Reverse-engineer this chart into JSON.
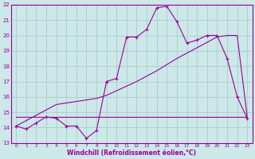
{
  "xlabel": "Windchill (Refroidissement éolien,°C)",
  "bg_color": "#cce8e8",
  "grid_color": "#aacccc",
  "line_color": "#990099",
  "hours": [
    0,
    1,
    2,
    3,
    4,
    5,
    6,
    7,
    8,
    9,
    10,
    11,
    12,
    13,
    14,
    15,
    16,
    17,
    18,
    19,
    20,
    21,
    22,
    23
  ],
  "temp": [
    14.1,
    13.9,
    14.3,
    14.7,
    14.6,
    14.1,
    14.1,
    13.3,
    13.8,
    17.0,
    17.2,
    19.9,
    19.9,
    20.4,
    21.8,
    21.9,
    20.9,
    19.5,
    19.7,
    20.0,
    20.0,
    18.5,
    16.0,
    14.6
  ],
  "wc_flat": [
    14.7,
    14.7,
    14.7,
    14.7,
    14.7,
    14.7,
    14.7,
    14.7,
    14.7,
    14.7,
    14.7,
    14.7,
    14.7,
    14.7,
    14.7,
    14.7,
    14.7,
    14.7,
    14.7,
    14.7,
    14.7,
    14.7,
    14.7,
    14.7
  ],
  "trend": [
    14.1,
    14.45,
    14.8,
    15.15,
    15.5,
    15.6,
    15.7,
    15.8,
    15.9,
    16.1,
    16.4,
    16.7,
    17.0,
    17.35,
    17.7,
    18.1,
    18.5,
    18.85,
    19.2,
    19.55,
    19.9,
    20.0,
    20.0,
    14.7
  ],
  "ylim": [
    13,
    22
  ],
  "xlim": [
    -0.5,
    23.5
  ],
  "yticks": [
    13,
    14,
    15,
    16,
    17,
    18,
    19,
    20,
    21,
    22
  ],
  "xticks": [
    0,
    1,
    2,
    3,
    4,
    5,
    6,
    7,
    8,
    9,
    10,
    11,
    12,
    13,
    14,
    15,
    16,
    17,
    18,
    19,
    20,
    21,
    22,
    23
  ]
}
